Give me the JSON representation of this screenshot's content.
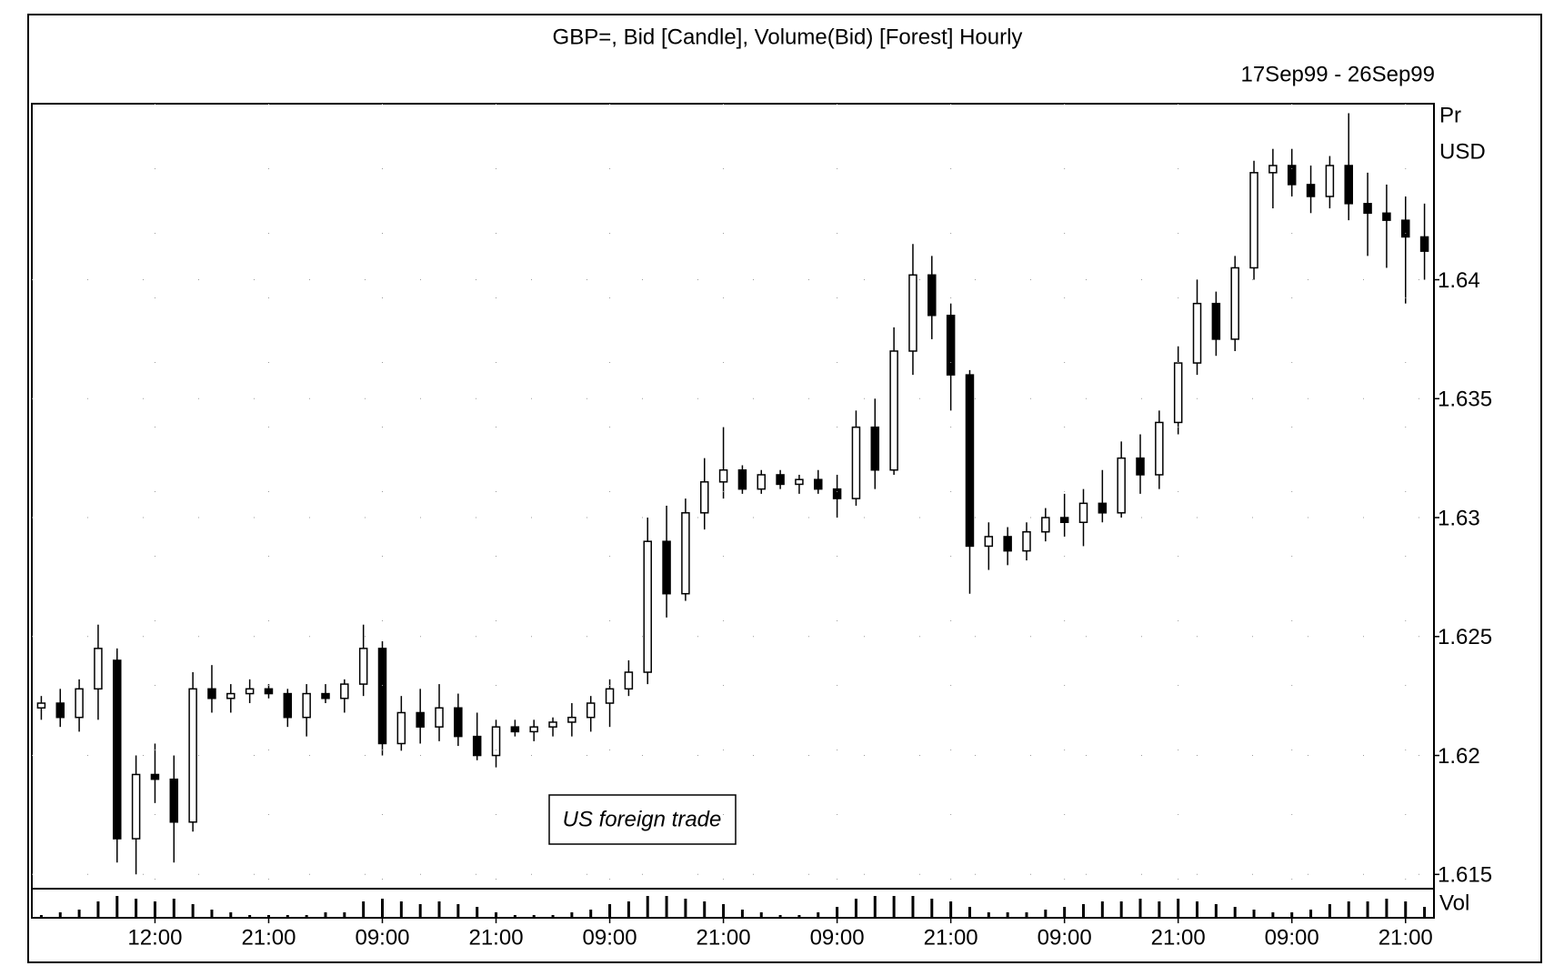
{
  "chart_data": {
    "type": "candlestick",
    "title": "GBP=, Bid [Candle], Volume(Bid) [Forest] Hourly",
    "subtitle": "17Sep99 - 26Sep99",
    "y_axis_label": [
      "Pr",
      "USD"
    ],
    "volume_label": "Vol",
    "annotation": "US foreign trade",
    "categories": [
      null,
      null,
      null,
      null,
      null,
      null,
      "12:00",
      null,
      null,
      null,
      null,
      null,
      "21:00",
      null,
      null,
      null,
      null,
      null,
      "09:00",
      null,
      null,
      null,
      null,
      null,
      "21:00",
      null,
      null,
      null,
      null,
      null,
      "09:00",
      null,
      null,
      null,
      null,
      null,
      "21:00",
      null,
      null,
      null,
      null,
      null,
      "09:00",
      null,
      null,
      null,
      null,
      null,
      "21:00",
      null,
      null,
      null,
      null,
      null,
      "09:00",
      null,
      null,
      null,
      null,
      null,
      "21:00",
      null,
      null,
      null,
      null,
      null,
      "09:00",
      null,
      null,
      null,
      null,
      null,
      "21:00",
      null
    ],
    "open": [
      1.622,
      1.6222,
      1.6216,
      1.6228,
      1.624,
      1.6165,
      1.6192,
      1.619,
      1.6172,
      1.6228,
      1.6224,
      1.6226,
      1.6228,
      1.6226,
      1.6216,
      1.6226,
      1.6224,
      1.623,
      1.6245,
      1.6205,
      1.6218,
      1.6212,
      1.622,
      1.6208,
      1.62,
      1.6212,
      1.621,
      1.6212,
      1.6214,
      1.6216,
      1.6222,
      1.6228,
      1.6235,
      1.629,
      1.6268,
      1.6302,
      1.6315,
      1.632,
      1.6312,
      1.6318,
      1.6314,
      1.6316,
      1.6312,
      1.6308,
      1.6338,
      1.632,
      1.637,
      1.6402,
      1.6385,
      1.636,
      1.6288,
      1.6292,
      1.6286,
      1.6294,
      1.63,
      1.6298,
      1.6306,
      1.6302,
      1.6325,
      1.6318,
      1.634,
      1.6365,
      1.639,
      1.6375,
      1.6405,
      1.6445,
      1.6448,
      1.644,
      1.6435,
      1.6448,
      1.6432,
      1.6428,
      1.6425,
      1.6418
    ],
    "high": [
      1.6225,
      1.6228,
      1.6232,
      1.6255,
      1.6245,
      1.62,
      1.6205,
      1.62,
      1.6235,
      1.6238,
      1.623,
      1.6232,
      1.623,
      1.6228,
      1.623,
      1.623,
      1.6232,
      1.6255,
      1.6248,
      1.6225,
      1.6228,
      1.623,
      1.6226,
      1.6218,
      1.6215,
      1.6215,
      1.6215,
      1.6216,
      1.6222,
      1.6225,
      1.6232,
      1.624,
      1.63,
      1.6305,
      1.6308,
      1.6325,
      1.6338,
      1.6322,
      1.632,
      1.632,
      1.6318,
      1.632,
      1.6318,
      1.6345,
      1.635,
      1.638,
      1.6415,
      1.641,
      1.639,
      1.6362,
      1.6298,
      1.6296,
      1.6298,
      1.6304,
      1.631,
      1.6312,
      1.632,
      1.6332,
      1.6335,
      1.6345,
      1.6372,
      1.64,
      1.6395,
      1.641,
      1.645,
      1.6455,
      1.6455,
      1.6448,
      1.6452,
      1.647,
      1.6445,
      1.644,
      1.6435,
      1.6432
    ],
    "low": [
      1.6215,
      1.6212,
      1.621,
      1.6215,
      1.6155,
      1.615,
      1.618,
      1.6155,
      1.6168,
      1.6218,
      1.6218,
      1.6222,
      1.6224,
      1.6212,
      1.6208,
      1.6222,
      1.6218,
      1.6225,
      1.62,
      1.6202,
      1.6205,
      1.6206,
      1.6204,
      1.6198,
      1.6195,
      1.6208,
      1.6206,
      1.6208,
      1.6208,
      1.621,
      1.6212,
      1.6225,
      1.623,
      1.6258,
      1.6265,
      1.6295,
      1.6308,
      1.631,
      1.631,
      1.6312,
      1.631,
      1.631,
      1.63,
      1.6305,
      1.6312,
      1.6318,
      1.636,
      1.6375,
      1.6345,
      1.6268,
      1.6278,
      1.628,
      1.6282,
      1.629,
      1.6292,
      1.6288,
      1.6298,
      1.63,
      1.631,
      1.6312,
      1.6335,
      1.636,
      1.6368,
      1.637,
      1.64,
      1.643,
      1.6435,
      1.6428,
      1.643,
      1.6425,
      1.641,
      1.6405,
      1.639,
      1.64
    ],
    "close": [
      1.6222,
      1.6216,
      1.6228,
      1.6245,
      1.6165,
      1.6192,
      1.619,
      1.6172,
      1.6228,
      1.6224,
      1.6226,
      1.6228,
      1.6226,
      1.6216,
      1.6226,
      1.6224,
      1.623,
      1.6245,
      1.6205,
      1.6218,
      1.6212,
      1.622,
      1.6208,
      1.62,
      1.6212,
      1.621,
      1.6212,
      1.6214,
      1.6216,
      1.6222,
      1.6228,
      1.6235,
      1.629,
      1.6268,
      1.6302,
      1.6315,
      1.632,
      1.6312,
      1.6318,
      1.6314,
      1.6316,
      1.6312,
      1.6308,
      1.6338,
      1.632,
      1.637,
      1.6402,
      1.6385,
      1.636,
      1.6288,
      1.6292,
      1.6286,
      1.6294,
      1.63,
      1.6298,
      1.6306,
      1.6302,
      1.6325,
      1.6318,
      1.634,
      1.6365,
      1.639,
      1.6375,
      1.6405,
      1.6445,
      1.6448,
      1.644,
      1.6435,
      1.6448,
      1.6432,
      1.6428,
      1.6425,
      1.6418,
      1.6412
    ],
    "volume": [
      1,
      2,
      3,
      6,
      8,
      7,
      6,
      7,
      5,
      3,
      2,
      1,
      1,
      1,
      1,
      2,
      2,
      6,
      7,
      6,
      5,
      6,
      5,
      4,
      2,
      1,
      1,
      1,
      2,
      3,
      5,
      6,
      8,
      8,
      7,
      6,
      5,
      3,
      2,
      1,
      1,
      2,
      4,
      7,
      8,
      8,
      8,
      7,
      6,
      4,
      2,
      2,
      2,
      3,
      4,
      5,
      6,
      6,
      7,
      6,
      7,
      6,
      5,
      4,
      3,
      2,
      2,
      3,
      5,
      6,
      6,
      7,
      6,
      4
    ],
    "ylim": [
      1.6144,
      1.6474
    ],
    "yticks": [
      1.615,
      1.62,
      1.625,
      1.63,
      1.635,
      1.64
    ],
    "volume_ylim": [
      0,
      10
    ],
    "up_color": "#ffffff",
    "down_color": "#000000",
    "grid": true
  }
}
